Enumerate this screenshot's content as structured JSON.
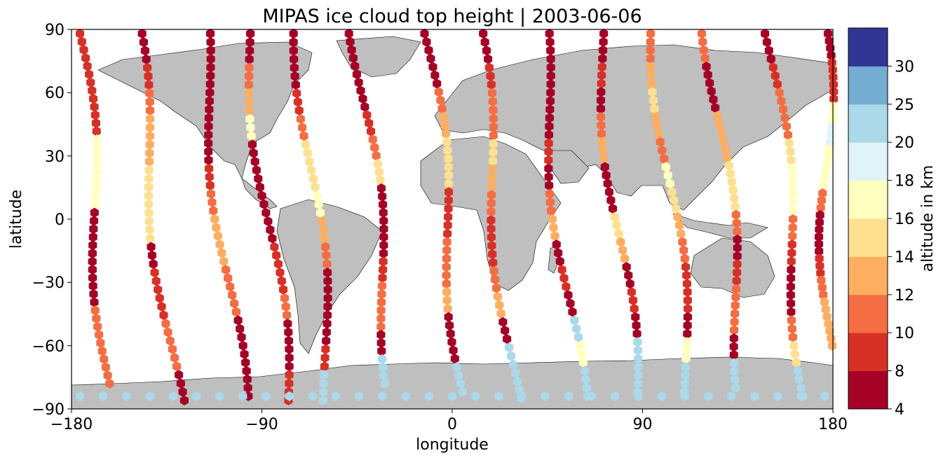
{
  "chart_data": {
    "type": "scatter",
    "title": "MIPAS ice cloud top height | 2003-06-06",
    "xlabel": "longitude",
    "ylabel": "latitude",
    "xlim": [
      -180,
      180
    ],
    "ylim": [
      -90,
      90
    ],
    "x_ticks": [
      "−180",
      "−90",
      "0",
      "90",
      "180"
    ],
    "y_ticks": [
      "90",
      "60",
      "30",
      "0",
      "−30",
      "−60",
      "−90"
    ],
    "grid": false,
    "background_map": "world land masses (grey)",
    "land_color": "#bfbfbf",
    "colorbar": {
      "label": "altitude in km",
      "ticks": [
        "4",
        "8",
        "10",
        "12",
        "14",
        "16",
        "18",
        "20",
        "25",
        "30"
      ],
      "boundaries": [
        4,
        8,
        10,
        12,
        14,
        16,
        18,
        20,
        25,
        30
      ],
      "colors": [
        "#a50026",
        "#d73027",
        "#f46d43",
        "#fdae61",
        "#fee090",
        "#ffffbf",
        "#e0f3f8",
        "#abd9e9",
        "#74add1",
        "#313695"
      ]
    },
    "tracks": [
      {
        "lon0": -176,
        "lon1": -162,
        "lat0": 88,
        "lat1": -78,
        "alt": [
          8,
          8,
          9,
          9,
          16,
          16,
          16,
          6,
          6,
          7,
          7,
          11,
          11,
          11
        ]
      },
      {
        "lon0": -150,
        "lon1": -130,
        "lat0": 88,
        "lat1": -86,
        "alt": [
          7,
          8,
          11,
          12,
          13,
          14,
          15,
          15,
          7,
          8,
          9,
          10,
          11,
          6
        ]
      },
      {
        "lon0": -118,
        "lon1": -100,
        "lat0": 88,
        "lat1": -84,
        "alt": [
          6,
          6,
          7,
          6,
          7,
          8,
          11,
          12,
          13,
          11,
          10,
          6,
          6,
          7
        ]
      },
      {
        "lon0": -96,
        "lon1": -78,
        "lat0": 88,
        "lat1": -86,
        "alt": [
          7,
          11,
          12,
          16,
          6,
          6,
          7,
          7,
          8,
          9,
          11,
          6,
          7,
          8
        ]
      },
      {
        "lon0": -72,
        "lon1": -58,
        "lat0": 88,
        "lat1": -86,
        "alt": [
          6,
          7,
          8,
          11,
          14,
          15,
          17,
          13,
          11,
          7,
          7,
          6,
          8,
          22
        ]
      },
      {
        "lon0": -45,
        "lon1": -28,
        "lat0": 88,
        "lat1": -78,
        "alt": [
          6,
          7,
          6,
          8,
          11,
          14,
          7,
          6,
          7,
          8,
          10,
          11,
          7,
          22
        ]
      },
      {
        "lon0": -12,
        "lon1": 6,
        "lat0": 88,
        "lat1": -82,
        "alt": [
          7,
          7,
          11,
          12,
          14,
          15,
          8,
          9,
          10,
          11,
          13,
          7,
          6,
          22
        ]
      },
      {
        "lon0": 12,
        "lon1": 30,
        "lat0": 88,
        "lat1": -85,
        "alt": [
          6,
          9,
          11,
          11,
          14,
          13,
          11,
          9,
          8,
          10,
          12,
          7,
          22,
          22
        ]
      },
      {
        "lon0": 42,
        "lon1": 60,
        "lat0": 88,
        "lat1": -84,
        "alt": [
          6,
          7,
          6,
          7,
          8,
          7,
          11,
          12,
          7,
          8,
          6,
          22,
          17,
          22
        ]
      },
      {
        "lon0": 70,
        "lon1": 86,
        "lat0": 88,
        "lat1": -82,
        "alt": [
          7,
          8,
          7,
          11,
          12,
          7,
          6,
          15,
          12,
          7,
          8,
          6,
          22,
          22
        ]
      },
      {
        "lon0": 96,
        "lon1": 112,
        "lat0": 88,
        "lat1": -82,
        "alt": [
          11,
          12,
          14,
          13,
          11,
          16,
          14,
          12,
          11,
          9,
          8,
          7,
          17,
          22
        ]
      },
      {
        "lon0": 122,
        "lon1": 138,
        "lat0": 88,
        "lat1": -80,
        "alt": [
          11,
          6,
          7,
          12,
          13,
          14,
          15,
          11,
          7,
          8,
          10,
          11,
          7,
          22
        ]
      },
      {
        "lon0": 150,
        "lon1": 168,
        "lat0": 88,
        "lat1": -84,
        "alt": [
          7,
          9,
          10,
          11,
          15,
          16,
          17,
          11,
          9,
          6,
          7,
          11,
          15,
          22
        ]
      },
      {
        "lon0": 176,
        "lon1": 178,
        "lat0": 88,
        "lat1": -60,
        "alt": [
          7,
          8,
          9,
          17,
          18,
          16,
          17,
          11,
          7,
          6,
          8,
          10,
          12,
          13
        ]
      }
    ],
    "blue_row": {
      "lat": -84,
      "alt": 22
    }
  }
}
